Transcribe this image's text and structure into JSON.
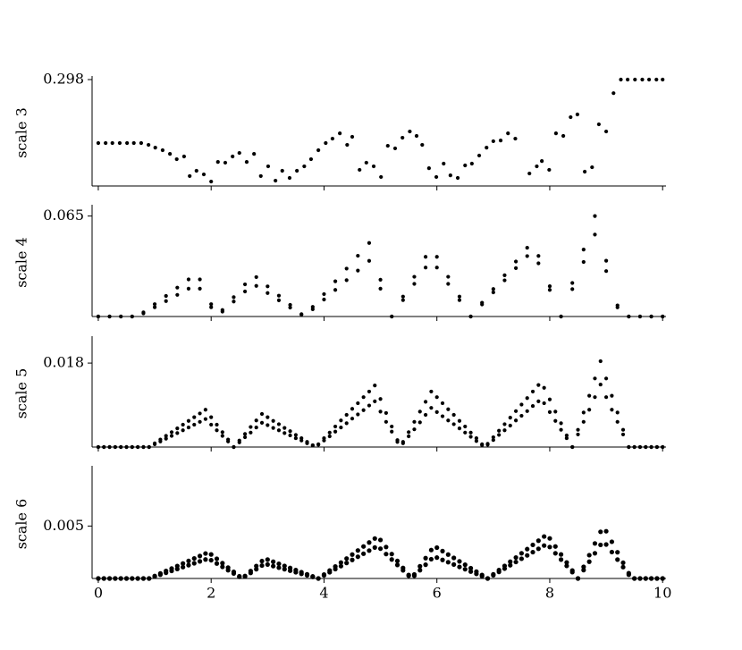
{
  "chart_data": [
    {
      "type": "scatter",
      "ylabel": "scale 3",
      "color": "#000000",
      "xlim": [
        -0.11,
        10.06
      ],
      "ylim": [
        0.24,
        0.298
      ],
      "yticks": [
        0.298
      ],
      "x": [
        0,
        0.13,
        0.25,
        0.38,
        0.51,
        0.63,
        0.76,
        0.89,
        1.01,
        1.14,
        1.27,
        1.39,
        1.52,
        1.62,
        1.74,
        1.87,
        2.0,
        2.12,
        2.25,
        2.38,
        2.5,
        2.63,
        2.76,
        2.88,
        3.01,
        3.14,
        3.26,
        3.39,
        3.52,
        3.65,
        3.77,
        3.9,
        4.03,
        4.15,
        4.28,
        4.41,
        4.5,
        4.63,
        4.75,
        4.88,
        5.01,
        5.13,
        5.26,
        5.39,
        5.52,
        5.64,
        5.74,
        5.86,
        5.99,
        6.12,
        6.24,
        6.37,
        6.5,
        6.62,
        6.75,
        6.88,
        7.0,
        7.13,
        7.26,
        7.39,
        7.64,
        7.77,
        7.86,
        7.99,
        8.11,
        8.24,
        8.37,
        8.49,
        8.62,
        8.75,
        8.87,
        9.0,
        9.13,
        9.26,
        9.38,
        9.51,
        9.64,
        9.76,
        9.89,
        10.0
      ],
      "series": [
        {
          "values": [
            0.2634,
            0.2634,
            0.2634,
            0.2634,
            0.2634,
            0.2634,
            0.2634,
            0.2624,
            0.2609,
            0.2595,
            0.2575,
            0.2546,
            0.2561,
            0.2454,
            0.2483,
            0.2463,
            0.2424,
            0.2531,
            0.2527,
            0.2561,
            0.258,
            0.2531,
            0.2575,
            0.2454,
            0.2507,
            0.2429,
            0.2483,
            0.2444,
            0.2483,
            0.2507,
            0.2546,
            0.2595,
            0.2634,
            0.2658,
            0.2687,
            0.2624,
            0.2668,
            0.2488,
            0.2527,
            0.2507,
            0.2449,
            0.2619,
            0.2605,
            0.2663,
            0.2697,
            0.2673,
            0.2624,
            0.2497,
            0.2449,
            0.2522,
            0.2458,
            0.2444,
            0.2512,
            0.2522,
            0.2566,
            0.2609,
            0.2644,
            0.2648,
            0.2687,
            0.2658,
            0.2468,
            0.2507,
            0.2536,
            0.2488,
            0.2687,
            0.2673,
            0.2775,
            0.279,
            0.2478,
            0.2502,
            0.2736,
            0.2697,
            0.2906,
            0.298,
            0.298,
            0.298,
            0.298,
            0.298,
            0.298,
            0.298
          ]
        }
      ]
    },
    {
      "type": "scatter",
      "ylabel": "scale 4",
      "color": "#000000",
      "xlim": [
        -0.11,
        10.06
      ],
      "ylim": [
        0,
        0.07
      ],
      "yticks": [
        0.065
      ],
      "x": [
        0,
        0.2,
        0.4,
        0.6,
        0.8,
        1.0,
        1.2,
        1.4,
        1.6,
        1.8,
        2.0,
        2.2,
        2.4,
        2.6,
        2.8,
        3.0,
        3.2,
        3.4,
        3.6,
        3.8,
        4.0,
        4.2,
        4.4,
        4.6,
        4.8,
        5.0,
        5.2,
        5.4,
        5.6,
        5.8,
        6.0,
        6.2,
        6.4,
        6.6,
        6.8,
        7.0,
        7.2,
        7.4,
        7.6,
        7.8,
        8.0,
        8.2,
        8.4,
        8.6,
        8.8,
        9.0,
        9.2,
        9.4,
        9.6,
        9.8,
        10.0
      ],
      "series": [
        {
          "values": [
            0,
            0,
            0,
            0,
            0.0027,
            0.008,
            0.0133,
            0.0187,
            0.024,
            0.024,
            0.008,
            0.0042,
            0.0125,
            0.0208,
            0.0255,
            0.0195,
            0.0135,
            0.0075,
            0.0015,
            0.0062,
            0.0145,
            0.0228,
            0.031,
            0.0393,
            0.0476,
            0.0238,
            0,
            0.0129,
            0.0257,
            0.0386,
            0.0386,
            0.0257,
            0.0129,
            0,
            0.0089,
            0.0178,
            0.0267,
            0.0356,
            0.0445,
            0.0392,
            0.0196,
            0,
            0.0217,
            0.0433,
            0.065,
            0.0361,
            0.0072,
            0,
            0,
            0,
            0
          ]
        },
        {
          "values": [
            0,
            0,
            0,
            0,
            0.002,
            0.006,
            0.01,
            0.014,
            0.018,
            0.018,
            0.006,
            0.0032,
            0.0097,
            0.0162,
            0.0198,
            0.0152,
            0.0105,
            0.0058,
            0.0012,
            0.0047,
            0.011,
            0.0172,
            0.0235,
            0.0297,
            0.036,
            0.018,
            0,
            0.0106,
            0.0211,
            0.0317,
            0.0317,
            0.0211,
            0.0106,
            0,
            0.0078,
            0.0156,
            0.0234,
            0.0313,
            0.0391,
            0.0344,
            0.0172,
            0,
            0.0177,
            0.0353,
            0.053,
            0.0294,
            0.0059,
            0,
            0,
            0,
            0
          ]
        }
      ]
    },
    {
      "type": "scatter",
      "ylabel": "scale 5",
      "color": "#000000",
      "xlim": [
        -0.11,
        10.06
      ],
      "ylim": [
        0,
        0.023
      ],
      "yticks": [
        0.018
      ],
      "x": [
        0,
        0.1,
        0.2,
        0.3,
        0.4,
        0.5,
        0.6,
        0.7,
        0.8,
        0.9,
        1.0,
        1.1,
        1.2,
        1.3,
        1.4,
        1.5,
        1.6,
        1.7,
        1.8,
        1.9,
        2.0,
        2.1,
        2.2,
        2.3,
        2.4,
        2.5,
        2.6,
        2.7,
        2.8,
        2.9,
        3.0,
        3.1,
        3.2,
        3.3,
        3.4,
        3.5,
        3.6,
        3.7,
        3.8,
        3.9,
        4.0,
        4.1,
        4.2,
        4.3,
        4.4,
        4.5,
        4.6,
        4.7,
        4.8,
        4.9,
        5.0,
        5.1,
        5.2,
        5.3,
        5.4,
        5.5,
        5.6,
        5.7,
        5.8,
        5.9,
        6.0,
        6.1,
        6.2,
        6.3,
        6.4,
        6.5,
        6.6,
        6.7,
        6.8,
        6.9,
        7.0,
        7.1,
        7.2,
        7.3,
        7.4,
        7.5,
        7.6,
        7.7,
        7.8,
        7.9,
        8.0,
        8.1,
        8.2,
        8.3,
        8.4,
        8.5,
        8.6,
        8.7,
        8.8,
        8.9,
        9.0,
        9.1,
        9.2,
        9.3,
        9.4,
        9.5,
        9.6,
        9.7,
        9.8,
        9.9,
        10.0
      ],
      "series": [
        {
          "values": [
            0,
            0,
            0,
            0,
            0,
            0,
            0,
            0,
            0,
            0,
            0.0008,
            0.0016,
            0.0024,
            0.0032,
            0.004,
            0.0048,
            0.0056,
            0.0064,
            0.0072,
            0.008,
            0.0064,
            0.0048,
            0.0032,
            0.0016,
            0,
            0.0014,
            0.0028,
            0.0043,
            0.0057,
            0.0071,
            0.0064,
            0.0056,
            0.0049,
            0.0041,
            0.0034,
            0.0026,
            0.0019,
            0.0011,
            0.0004,
            0.0006,
            0.0019,
            0.0031,
            0.0044,
            0.0057,
            0.0069,
            0.0082,
            0.0094,
            0.0107,
            0.0119,
            0.0132,
            0.0103,
            0.0073,
            0.0044,
            0.0015,
            0.0011,
            0.0032,
            0.0054,
            0.0076,
            0.0097,
            0.0119,
            0.0107,
            0.0094,
            0.0081,
            0.0069,
            0.0056,
            0.0044,
            0.0031,
            0.0019,
            0.0006,
            0.0007,
            0.0021,
            0.0035,
            0.0049,
            0.0063,
            0.0077,
            0.0091,
            0.0105,
            0.0119,
            0.0133,
            0.0127,
            0.0102,
            0.0076,
            0.0051,
            0.0025,
            0,
            0.0037,
            0.0074,
            0.011,
            0.0147,
            0.0184,
            0.0147,
            0.011,
            0.0074,
            0.0037,
            0,
            0,
            0,
            0,
            0,
            0,
            0
          ]
        },
        {
          "values": [
            0,
            0,
            0,
            0,
            0,
            0,
            0,
            0,
            0,
            0,
            0.0006,
            0.0012,
            0.0018,
            0.0024,
            0.003,
            0.0036,
            0.0042,
            0.0048,
            0.0054,
            0.006,
            0.0048,
            0.0036,
            0.0024,
            0.0012,
            0,
            0.001,
            0.0021,
            0.0031,
            0.0042,
            0.0052,
            0.0047,
            0.0041,
            0.0036,
            0.003,
            0.0025,
            0.0019,
            0.0014,
            0.0008,
            0.0003,
            0.0005,
            0.0014,
            0.0023,
            0.0033,
            0.0042,
            0.0051,
            0.0061,
            0.007,
            0.0079,
            0.0089,
            0.0098,
            0.0076,
            0.0054,
            0.0033,
            0.0011,
            0.0008,
            0.0023,
            0.0038,
            0.0053,
            0.0069,
            0.0084,
            0.0075,
            0.0066,
            0.0057,
            0.0049,
            0.004,
            0.0031,
            0.0022,
            0.0013,
            0.0004,
            0.0005,
            0.0015,
            0.0026,
            0.0036,
            0.0046,
            0.0057,
            0.0067,
            0.0077,
            0.0088,
            0.0098,
            0.0094,
            0.0075,
            0.0056,
            0.0037,
            0.0019,
            0,
            0.0027,
            0.0054,
            0.008,
            0.0107,
            0.0134,
            0.0107,
            0.008,
            0.0054,
            0.0027,
            0,
            0,
            0,
            0,
            0,
            0,
            0
          ]
        }
      ]
    },
    {
      "type": "scatter",
      "ylabel": "scale 6",
      "color": "#000000",
      "xlim": [
        -0.11,
        10.06
      ],
      "ylim": [
        0,
        0.0104
      ],
      "yticks": [
        0.005
      ],
      "xticks": [
        0,
        2,
        4,
        6,
        8,
        10
      ],
      "x": [
        0,
        0.1,
        0.2,
        0.3,
        0.4,
        0.5,
        0.6,
        0.7,
        0.8,
        0.9,
        1.0,
        1.1,
        1.2,
        1.3,
        1.4,
        1.5,
        1.6,
        1.7,
        1.8,
        1.9,
        2.0,
        2.1,
        2.2,
        2.3,
        2.4,
        2.5,
        2.6,
        2.7,
        2.8,
        2.9,
        3.0,
        3.1,
        3.2,
        3.3,
        3.4,
        3.5,
        3.6,
        3.7,
        3.8,
        3.9,
        4.0,
        4.1,
        4.2,
        4.3,
        4.4,
        4.5,
        4.6,
        4.7,
        4.8,
        4.9,
        5.0,
        5.1,
        5.2,
        5.3,
        5.4,
        5.5,
        5.6,
        5.7,
        5.8,
        5.9,
        6.0,
        6.1,
        6.2,
        6.3,
        6.4,
        6.5,
        6.6,
        6.7,
        6.8,
        6.9,
        7.0,
        7.1,
        7.2,
        7.3,
        7.4,
        7.5,
        7.6,
        7.7,
        7.8,
        7.9,
        8.0,
        8.1,
        8.2,
        8.3,
        8.4,
        8.5,
        8.6,
        8.7,
        8.8,
        8.9,
        9.0,
        9.1,
        9.2,
        9.3,
        9.4,
        9.5,
        9.6,
        9.7,
        9.8,
        9.9,
        10.0
      ],
      "series": [
        {
          "values": [
            0,
            0,
            0,
            0,
            0,
            0,
            0,
            0,
            0,
            0,
            0.00024,
            0.00048,
            0.00072,
            0.00095,
            0.00119,
            0.00143,
            0.00167,
            0.00191,
            0.00214,
            0.00238,
            0.00229,
            0.00188,
            0.00146,
            0.00104,
            0.00063,
            0.00021,
            0.00024,
            0.00071,
            0.00119,
            0.00166,
            0.0018,
            0.0016,
            0.0014,
            0.0012,
            0.001,
            0.0008,
            0.0006,
            0.0004,
            0.0002,
            0,
            0.00038,
            0.00076,
            0.00114,
            0.00152,
            0.0019,
            0.00228,
            0.00267,
            0.00305,
            0.00343,
            0.00381,
            0.00367,
            0.003,
            0.00233,
            0.00167,
            0.001,
            0.00033,
            0.00039,
            0.00116,
            0.00194,
            0.00271,
            0.00294,
            0.00261,
            0.00228,
            0.00196,
            0.00163,
            0.00131,
            0.00098,
            0.00065,
            0.00033,
            0,
            0.0004,
            0.0008,
            0.0012,
            0.0016,
            0.002,
            0.0024,
            0.0028,
            0.0032,
            0.0036,
            0.004,
            0.00382,
            0.00305,
            0.00229,
            0.00153,
            0.00076,
            0,
            0.00111,
            0.00222,
            0.00334,
            0.00445,
            0.0045,
            0.0035,
            0.0025,
            0.0015,
            0.0005,
            0,
            0,
            0,
            0,
            0,
            0
          ]
        },
        {
          "values": [
            0,
            0,
            0,
            0,
            0,
            0,
            0,
            0,
            0,
            0,
            0.00018,
            0.00036,
            0.00054,
            0.00072,
            0.0009,
            0.00108,
            0.00127,
            0.00145,
            0.00163,
            0.00181,
            0.00174,
            0.00143,
            0.00111,
            0.00079,
            0.00048,
            0.00016,
            0.00018,
            0.00053,
            0.00088,
            0.00123,
            0.00133,
            0.00118,
            0.00103,
            0.00088,
            0.00074,
            0.00059,
            0.00044,
            0.0003,
            0.00015,
            0,
            0.00029,
            0.00059,
            0.00089,
            0.00118,
            0.00148,
            0.00177,
            0.00207,
            0.00236,
            0.00266,
            0.00295,
            0.00284,
            0.00233,
            0.00181,
            0.00129,
            0.00078,
            0.00026,
            0.00026,
            0.00079,
            0.00131,
            0.00184,
            0.00199,
            0.00177,
            0.00155,
            0.00133,
            0.0011,
            0.00088,
            0.00066,
            0.00044,
            0.00022,
            0,
            0.00031,
            0.00063,
            0.00094,
            0.00126,
            0.00157,
            0.00188,
            0.0022,
            0.00251,
            0.00283,
            0.00314,
            0.003,
            0.0024,
            0.0018,
            0.0012,
            0.0006,
            0,
            0.0008,
            0.0016,
            0.0024,
            0.0032,
            0.00324,
            0.00252,
            0.0018,
            0.00108,
            0.00036,
            0,
            0,
            0,
            0,
            0,
            0
          ]
        }
      ]
    }
  ]
}
